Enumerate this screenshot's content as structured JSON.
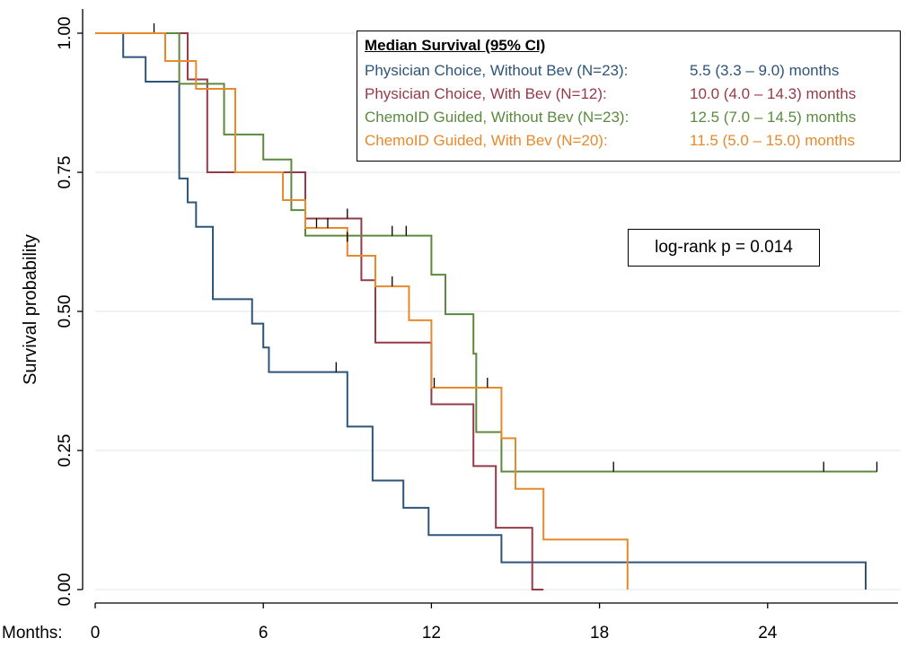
{
  "chart_data": {
    "type": "line",
    "xlabel": "Months:",
    "ylabel": "Survival probability",
    "xlim": [
      0,
      28
    ],
    "ylim": [
      0,
      1
    ],
    "xticks": [
      0,
      6,
      12,
      18,
      24
    ],
    "xtick_labels": [
      "0",
      "6",
      "12",
      "18",
      "24"
    ],
    "yticks": [
      0,
      0.25,
      0.5,
      0.75,
      1
    ],
    "ytick_labels": [
      "0.00",
      "0.25",
      "0.50",
      "0.75",
      "1.00"
    ],
    "grid": true,
    "legend_title": "Median Survival (95% CI)",
    "annotation": "log-rank p = 0.014",
    "series": [
      {
        "name": "Physician Choice, Without Bev (N=23):",
        "stat": "5.5 (3.3 – 9.0) months",
        "color": "#2e5579",
        "steps": [
          [
            0,
            1.0
          ],
          [
            1.0,
            0.957
          ],
          [
            1.8,
            0.913
          ],
          [
            3.0,
            0.739
          ],
          [
            3.3,
            0.696
          ],
          [
            3.6,
            0.652
          ],
          [
            4.2,
            0.522
          ],
          [
            5.6,
            0.478
          ],
          [
            6.0,
            0.435
          ],
          [
            6.2,
            0.391
          ],
          [
            9.0,
            0.293
          ],
          [
            9.9,
            0.196
          ],
          [
            11.0,
            0.147
          ],
          [
            11.9,
            0.098
          ],
          [
            14.5,
            0.049
          ],
          [
            27.5,
            0.0
          ]
        ],
        "end": 27.5,
        "censors": [
          [
            2.1,
            1.0
          ],
          [
            8.6,
            0.391
          ]
        ]
      },
      {
        "name": "Physician Choice, With Bev (N=12):",
        "stat": "10.0 (4.0 – 14.3) months",
        "color": "#963a48",
        "steps": [
          [
            0,
            1.0
          ],
          [
            3.3,
            0.917
          ],
          [
            4.0,
            0.75
          ],
          [
            7.5,
            0.667
          ],
          [
            9.5,
            0.556
          ],
          [
            10.0,
            0.444
          ],
          [
            12.0,
            0.333
          ],
          [
            13.5,
            0.222
          ],
          [
            14.3,
            0.111
          ],
          [
            15.6,
            0.0
          ]
        ],
        "end": 16.0,
        "censors": [
          [
            9.0,
            0.667
          ]
        ]
      },
      {
        "name": "ChemoID Guided, Without Bev (N=23):",
        "stat": "12.5 (7.0 – 14.5) months",
        "color": "#5b8a3e",
        "steps": [
          [
            0,
            1.0
          ],
          [
            3.0,
            0.909
          ],
          [
            4.6,
            0.818
          ],
          [
            6.0,
            0.773
          ],
          [
            7.0,
            0.682
          ],
          [
            7.5,
            0.636
          ],
          [
            12.0,
            0.566
          ],
          [
            12.5,
            0.495
          ],
          [
            13.5,
            0.424
          ],
          [
            13.6,
            0.283
          ],
          [
            14.5,
            0.212
          ]
        ],
        "end": 27.9,
        "censors": [
          [
            10.6,
            0.636
          ],
          [
            11.1,
            0.636
          ],
          [
            18.5,
            0.212
          ],
          [
            26.0,
            0.212
          ],
          [
            27.9,
            0.212
          ]
        ]
      },
      {
        "name": "ChemoID Guided, With Bev (N=20):",
        "stat": "11.5 (5.0 – 15.0) months",
        "color": "#e8892b",
        "steps": [
          [
            0,
            1.0
          ],
          [
            2.5,
            0.95
          ],
          [
            3.6,
            0.9
          ],
          [
            5.0,
            0.75
          ],
          [
            6.7,
            0.7
          ],
          [
            7.5,
            0.65
          ],
          [
            9.0,
            0.6
          ],
          [
            10.0,
            0.545
          ],
          [
            11.2,
            0.484
          ],
          [
            12.0,
            0.363
          ],
          [
            14.5,
            0.272
          ],
          [
            15.0,
            0.181
          ],
          [
            16.0,
            0.09
          ],
          [
            19.0,
            0.0
          ]
        ],
        "end": 19.0,
        "censors": [
          [
            7.9,
            0.65
          ],
          [
            8.3,
            0.65
          ],
          [
            9.0,
            0.625
          ],
          [
            10.6,
            0.545
          ],
          [
            12.1,
            0.363
          ],
          [
            14.0,
            0.363
          ]
        ]
      }
    ]
  }
}
